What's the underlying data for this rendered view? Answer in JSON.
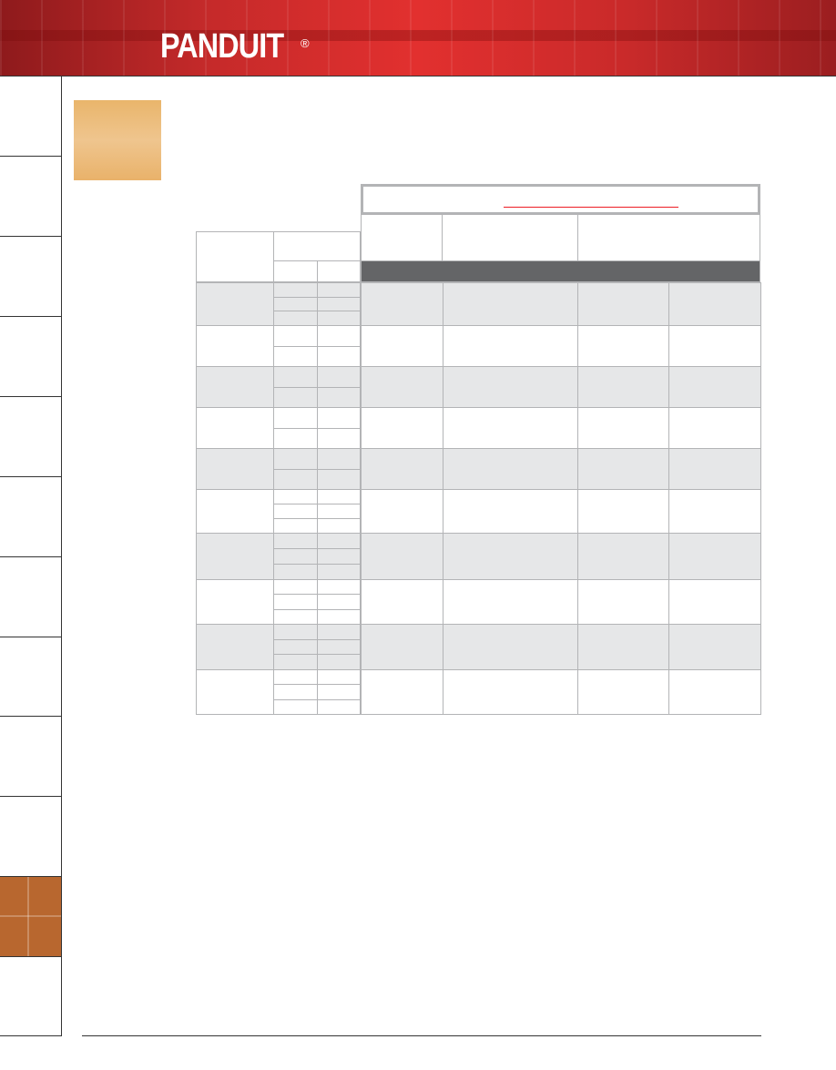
{
  "header": {
    "logo_text": "PANDUIT",
    "registered_mark": "®",
    "banner_color": "#d72a2a"
  },
  "sidebar": {
    "tab_count": 12,
    "active_tab_index": 10,
    "active_color": "#b8672f"
  },
  "section_swatch_color": "#edbd7c",
  "table": {
    "header_bar_color": "#646567",
    "shaded_row_color": "#e6e7e8",
    "border_color": "#b3b4b6",
    "title_rule_color": "#ed1c24"
  }
}
